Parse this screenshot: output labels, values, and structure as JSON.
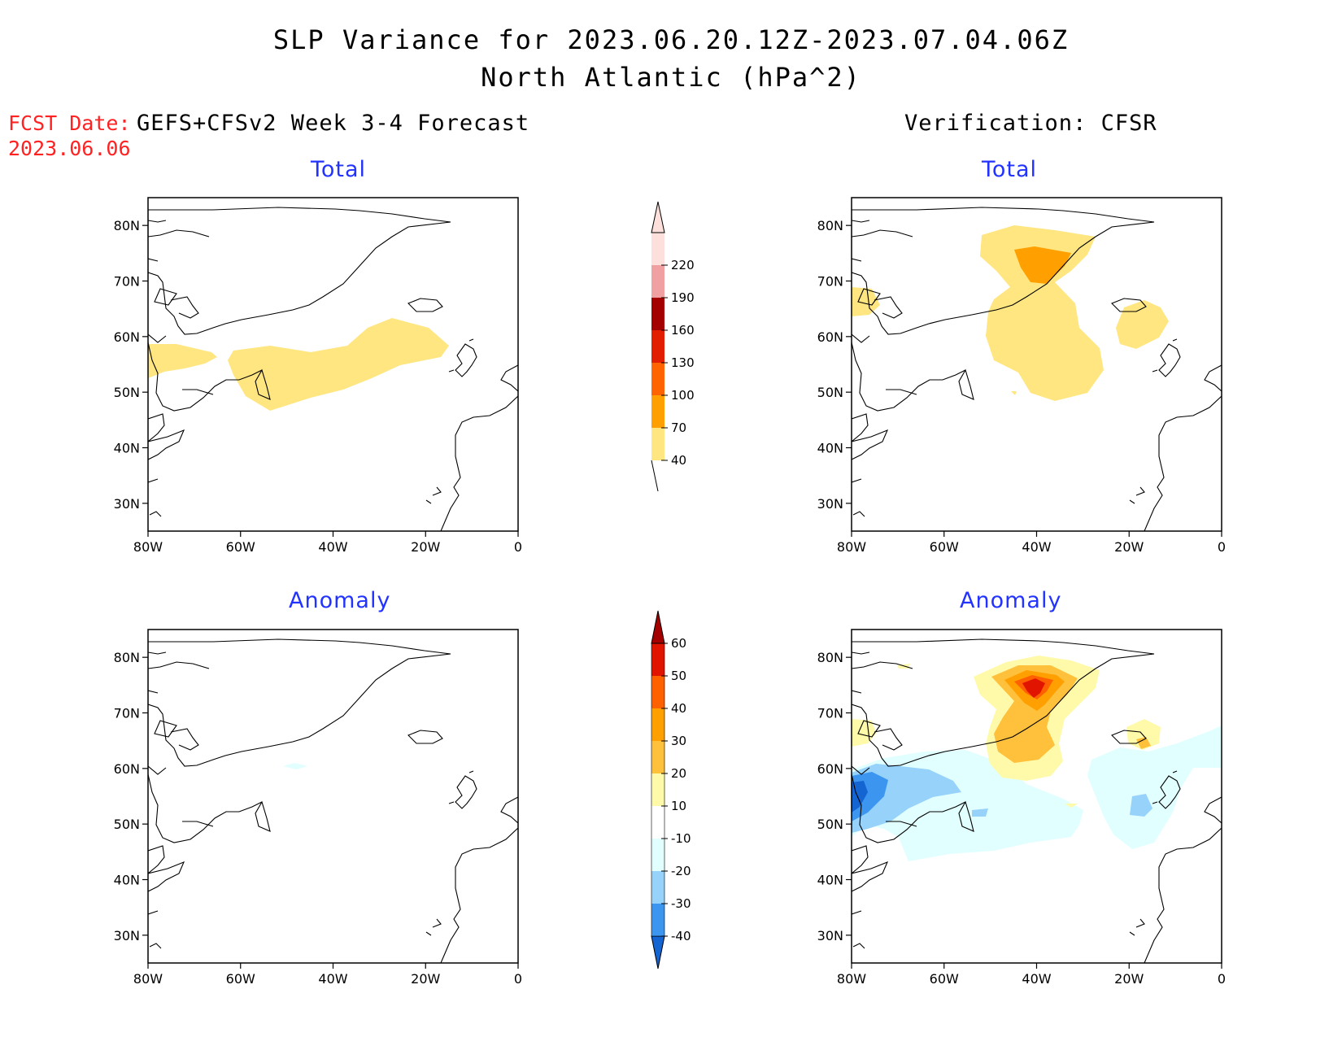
{
  "title": {
    "line1": "SLP Variance for 2023.06.20.12Z-2023.07.04.06Z",
    "line2": "North Atlantic (hPa^2)"
  },
  "fcst": {
    "label": "FCST Date:",
    "date": "2023.06.06"
  },
  "columns": {
    "left": "GEFS+CFSv2 Week 3-4 Forecast",
    "right": "Verification: CFSR"
  },
  "panels": {
    "top_left": "Total",
    "top_right": "Total",
    "bottom_left": "Anomaly",
    "bottom_right": "Anomaly"
  },
  "map": {
    "lat_labels": [
      "80N",
      "70N",
      "60N",
      "50N",
      "40N",
      "30N"
    ],
    "lon_labels": [
      "80W",
      "60W",
      "40W",
      "20W",
      "0"
    ],
    "lat_range": [
      25,
      85
    ],
    "lon_range": [
      -80,
      0
    ]
  },
  "colorbars": {
    "total": {
      "labels": [
        "40",
        "70",
        "100",
        "130",
        "160",
        "190",
        "220"
      ],
      "colors": [
        "#ffe680",
        "#ffa000",
        "#ff6400",
        "#e11e00",
        "#a50000",
        "#f0a0a0",
        "#fde0dc"
      ]
    },
    "anomaly": {
      "labels": [
        "-40",
        "-30",
        "-20",
        "-10",
        "10",
        "20",
        "30",
        "40",
        "50",
        "60"
      ],
      "colors": [
        "#1464d2",
        "#3c96f0",
        "#96d2fa",
        "#e1ffff",
        "#ffffff",
        "#fffaaa",
        "#ffc03c",
        "#ffa000",
        "#ff6000",
        "#e11400",
        "#a50000"
      ]
    }
  }
}
